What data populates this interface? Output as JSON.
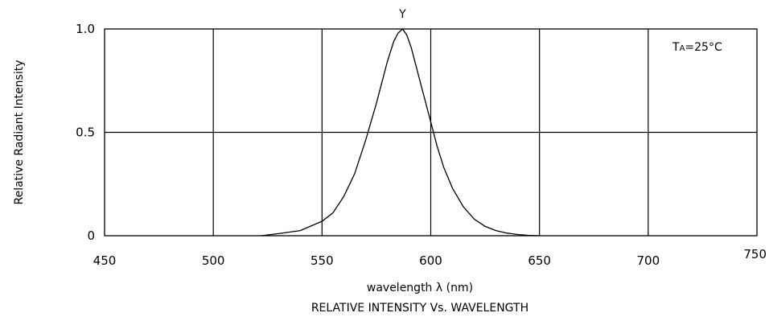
{
  "chart_data": {
    "type": "line",
    "title": "RELATIVE INTENSITY Vs. WAVELENGTH",
    "xlabel": "wavelength λ (nm)",
    "ylabel": "Relative Radiant Intensity",
    "xlim": [
      450,
      750
    ],
    "ylim": [
      0,
      1.0
    ],
    "x_ticks": [
      450,
      500,
      550,
      600,
      650,
      700,
      750
    ],
    "x_tick_labels": [
      "450",
      "500",
      "550",
      "600",
      "650",
      "700",
      "750"
    ],
    "y_ticks": [
      0,
      0.5,
      1.0
    ],
    "y_tick_labels": [
      "0",
      "0.5",
      "1.0"
    ],
    "grid": true,
    "annotation": {
      "prefix": "T",
      "subscript": "A",
      "suffix": "=25°C"
    },
    "series": [
      {
        "name": "Y",
        "x": [
          522,
          530,
          540,
          550,
          555,
          560,
          565,
          570,
          575,
          578,
          580,
          583,
          585,
          587,
          589,
          591,
          593,
          595,
          597,
          600,
          603,
          606,
          610,
          615,
          620,
          625,
          630,
          635,
          640,
          645,
          650
        ],
        "y": [
          0.0,
          0.01,
          0.025,
          0.07,
          0.11,
          0.19,
          0.3,
          0.46,
          0.64,
          0.76,
          0.84,
          0.94,
          0.98,
          1.0,
          0.97,
          0.91,
          0.83,
          0.75,
          0.67,
          0.55,
          0.43,
          0.33,
          0.23,
          0.14,
          0.08,
          0.045,
          0.025,
          0.013,
          0.006,
          0.002,
          0.0
        ]
      }
    ]
  }
}
